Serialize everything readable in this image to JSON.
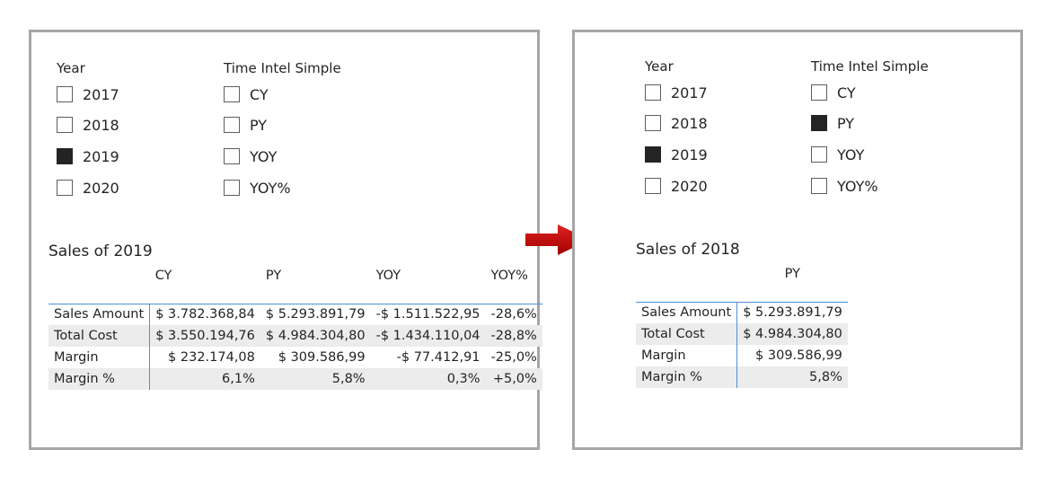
{
  "left_panel": {
    "year_slicer": {
      "title": "Year",
      "items": [
        {
          "label": "2017",
          "checked": false
        },
        {
          "label": "2018",
          "checked": false
        },
        {
          "label": "2019",
          "checked": true
        },
        {
          "label": "2020",
          "checked": false
        }
      ]
    },
    "time_intel_slicer": {
      "title": "Time Intel Simple",
      "items": [
        {
          "label": "CY",
          "checked": false
        },
        {
          "label": "PY",
          "checked": false
        },
        {
          "label": "YOY",
          "checked": false
        },
        {
          "label": "YOY%",
          "checked": false
        }
      ]
    },
    "table_title": "Sales of 2019",
    "columns": [
      "",
      "CY",
      "PY",
      "YOY",
      "YOY%"
    ],
    "rows": [
      [
        "Sales Amount",
        "$ 3.782.368,84",
        "$ 5.293.891,79",
        "-$ 1.511.522,95",
        "-28,6%"
      ],
      [
        "Total Cost",
        "$ 3.550.194,76",
        "$ 4.984.304,80",
        "-$ 1.434.110,04",
        "-28,8%"
      ],
      [
        "Margin",
        "$ 232.174,08",
        "$ 309.586,99",
        "-$ 77.412,91",
        "-25,0%"
      ],
      [
        "Margin %",
        "6,1%",
        "5,8%",
        "0,3%",
        "+5,0%"
      ]
    ]
  },
  "right_panel": {
    "year_slicer": {
      "title": "Year",
      "items": [
        {
          "label": "2017",
          "checked": false
        },
        {
          "label": "2018",
          "checked": false
        },
        {
          "label": "2019",
          "checked": true
        },
        {
          "label": "2020",
          "checked": false
        }
      ]
    },
    "time_intel_slicer": {
      "title": "Time Intel Simple",
      "items": [
        {
          "label": "CY",
          "checked": false
        },
        {
          "label": "PY",
          "checked": true
        },
        {
          "label": "YOY",
          "checked": false
        },
        {
          "label": "YOY%",
          "checked": false
        }
      ]
    },
    "table_title": "Sales of 2018",
    "columns": [
      "",
      "PY"
    ],
    "rows": [
      [
        "Sales Amount",
        "$ 5.293.891,79"
      ],
      [
        "Total Cost",
        "$ 4.984.304,80"
      ],
      [
        "Margin",
        "$ 309.586,99"
      ],
      [
        "Margin %",
        "5,8%"
      ]
    ]
  },
  "colors": {
    "panel_border": "#a6a6a6",
    "checked_fill": "#252423",
    "arrow": "#c00000",
    "grid_line": "#4f90d6",
    "row_shade": "#ececec"
  }
}
